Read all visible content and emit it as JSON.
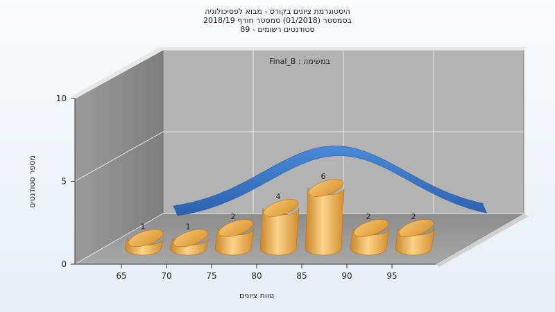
{
  "chart_data": {
    "type": "bar",
    "title_lines": [
      "היסטוגרמת ציונים בקורס - מבוא לפסיכולוגיה",
      "בסמסטר  (01/2018)  סמסטר חורף 2018/19",
      "סטודנטים רשומים - 89"
    ],
    "subtitle": "במשימה : Final_B",
    "xlabel": "טווח ציונים",
    "ylabel": "מספר סטודנטים",
    "x_ticks": [
      "65",
      "70",
      "75",
      "80",
      "85",
      "90",
      "95"
    ],
    "y_ticks": [
      "0",
      "5",
      "10"
    ],
    "ylim": [
      0,
      10
    ],
    "categories": [
      "65",
      "70",
      "75",
      "80",
      "85",
      "90",
      "95"
    ],
    "values": [
      1,
      1,
      2,
      4,
      6,
      2,
      2
    ],
    "data_labels": [
      "1",
      "1",
      "2",
      "4",
      "6",
      "2",
      "2"
    ],
    "curve": "normal distribution ribbon",
    "grid": true,
    "colors": {
      "bar": "#e9a94c",
      "curve": "#3a78c8",
      "back_wall": "#b4b4b4",
      "side_wall": "#8a8a8a",
      "floor": "#999999"
    }
  }
}
